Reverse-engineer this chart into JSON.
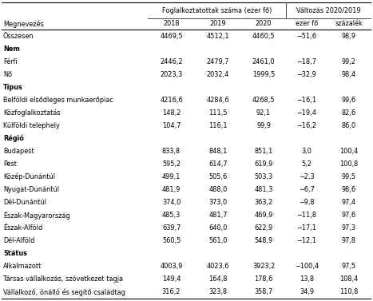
{
  "col_headers_top": [
    "Foglalkoztatottak száma (ezer fő)",
    "Változás 2020/2019"
  ],
  "col_headers_sub": [
    "2018",
    "2019",
    "2020",
    "ezer fő",
    "százalék"
  ],
  "row_header": "Megnevezés",
  "rows": [
    {
      "label": "Összesen",
      "bold": false,
      "data": [
        "4469,5",
        "4512,1",
        "4460,5",
        "−51,6",
        "98,9"
      ]
    },
    {
      "label": "Nem",
      "bold": true,
      "data": [
        "",
        "",
        "",
        "",
        ""
      ]
    },
    {
      "label": "Férfi",
      "bold": false,
      "data": [
        "2446,2",
        "2479,7",
        "2461,0",
        "−18,7",
        "99,2"
      ]
    },
    {
      "label": "Nő",
      "bold": false,
      "data": [
        "2023,3",
        "2032,4",
        "1999,5",
        "−32,9",
        "98,4"
      ]
    },
    {
      "label": "Típus",
      "bold": true,
      "data": [
        "",
        "",
        "",
        "",
        ""
      ]
    },
    {
      "label": "Belföldi elsődleges munkaerőpiac",
      "bold": false,
      "data": [
        "4216,6",
        "4284,6",
        "4268,5",
        "−16,1",
        "99,6"
      ]
    },
    {
      "label": "Közfoglalkoztatás",
      "bold": false,
      "data": [
        "148,2",
        "111,5",
        "92,1",
        "−19,4",
        "82,6"
      ]
    },
    {
      "label": "Külföldi telephely",
      "bold": false,
      "data": [
        "104,7",
        "116,1",
        "99,9",
        "−16,2",
        "86,0"
      ]
    },
    {
      "label": "Régió",
      "bold": true,
      "data": [
        "",
        "",
        "",
        "",
        ""
      ]
    },
    {
      "label": "Budapest",
      "bold": false,
      "data": [
        "833,8",
        "848,1",
        "851,1",
        "3,0",
        "100,4"
      ]
    },
    {
      "label": "Pest",
      "bold": false,
      "data": [
        "595,2",
        "614,7",
        "619,9",
        "5,2",
        "100,8"
      ]
    },
    {
      "label": "Közép-Dunántúl",
      "bold": false,
      "data": [
        "499,1",
        "505,6",
        "503,3",
        "−2,3",
        "99,5"
      ]
    },
    {
      "label": "Nyugat-Dunántúl",
      "bold": false,
      "data": [
        "481,9",
        "488,0",
        "481,3",
        "−6,7",
        "98,6"
      ]
    },
    {
      "label": "Dél-Dunántúl",
      "bold": false,
      "data": [
        "374,0",
        "373,0",
        "363,2",
        "−9,8",
        "97,4"
      ]
    },
    {
      "label": "Észak-Magyarország",
      "bold": false,
      "data": [
        "485,3",
        "481,7",
        "469,9",
        "−11,8",
        "97,6"
      ]
    },
    {
      "label": "Észak-Alföld",
      "bold": false,
      "data": [
        "639,7",
        "640,0",
        "622,9",
        "−17,1",
        "97,3"
      ]
    },
    {
      "label": "Dél-Alföld",
      "bold": false,
      "data": [
        "560,5",
        "561,0",
        "548,9",
        "−12,1",
        "97,8"
      ]
    },
    {
      "label": "Státus",
      "bold": true,
      "data": [
        "",
        "",
        "",
        "",
        ""
      ]
    },
    {
      "label": "Alkalmazott",
      "bold": false,
      "data": [
        "4003,9",
        "4023,6",
        "3923,2",
        "−100,4",
        "97,5"
      ]
    },
    {
      "label": "Társas vállalkozás, szövetkezet tagja",
      "bold": false,
      "data": [
        "149,4",
        "164,8",
        "178,6",
        "13,8",
        "108,4"
      ]
    },
    {
      "label": "Vállalkozó, önálló és segítő családtag",
      "bold": false,
      "data": [
        "316,2",
        "323,8",
        "358,7",
        "34,9",
        "110,8"
      ]
    }
  ],
  "bg_color": "#ffffff",
  "text_color": "#000000",
  "line_color": "#000000",
  "font_size": 5.9
}
